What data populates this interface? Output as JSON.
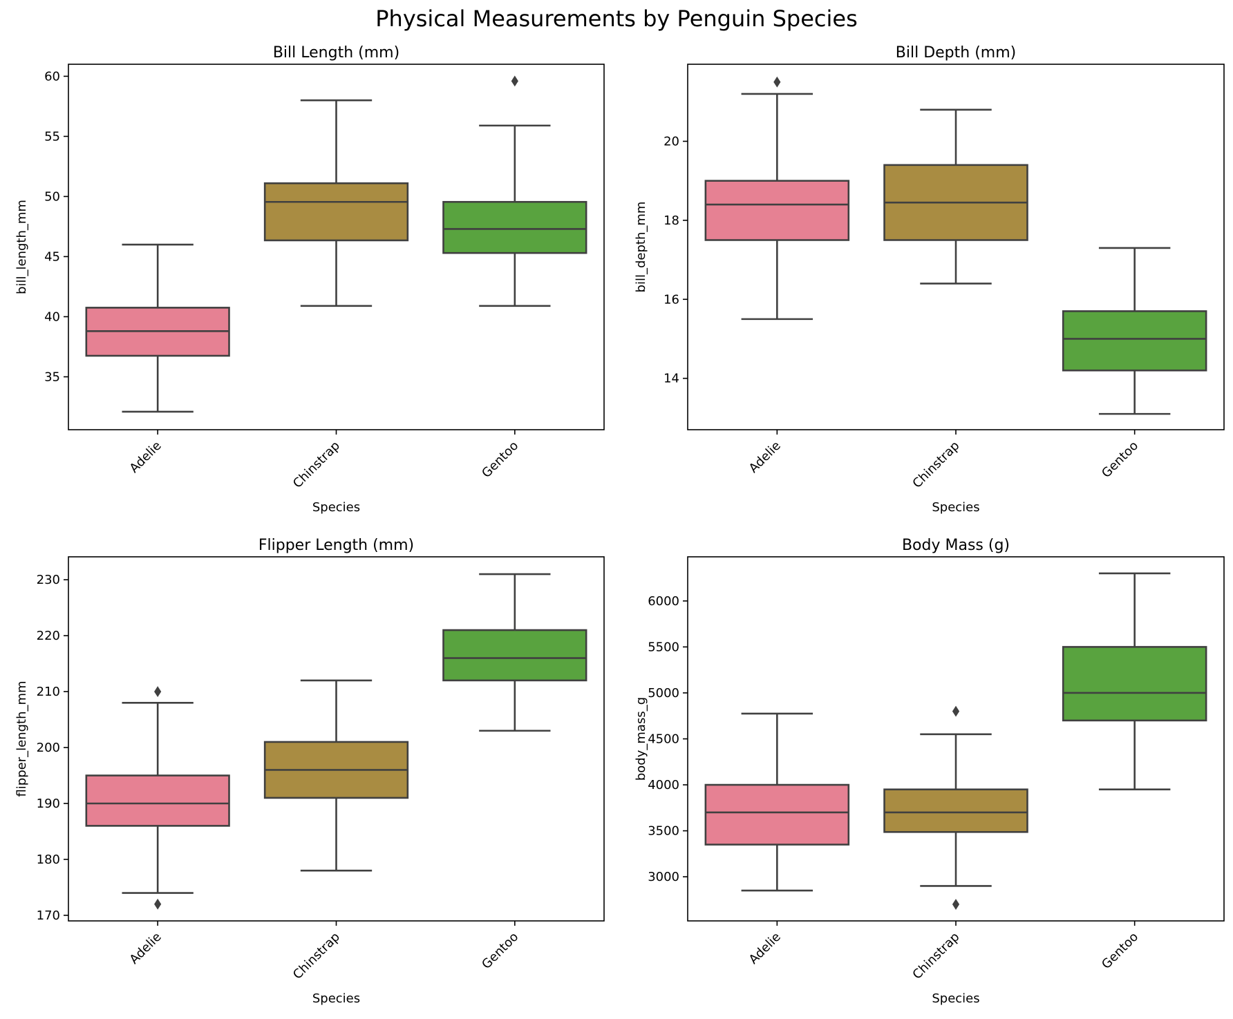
{
  "figure_title": "Physical Measurements by Penguin Species",
  "chart_data": [
    {
      "type": "box",
      "title": "Bill Length (mm)",
      "xlabel": "Species",
      "ylabel": "bill_length_mm",
      "categories": [
        "Adelie",
        "Chinstrap",
        "Gentoo"
      ],
      "ylim": [
        30.6,
        61.0
      ],
      "yticks": [
        35,
        40,
        45,
        50,
        55,
        60
      ],
      "boxes": [
        {
          "category": "Adelie",
          "whislo": 32.1,
          "q1": 36.75,
          "med": 38.8,
          "q3": 40.75,
          "whishi": 46.0,
          "fliers": []
        },
        {
          "category": "Chinstrap",
          "whislo": 40.9,
          "q1": 46.35,
          "med": 49.55,
          "q3": 51.1,
          "whishi": 58.0,
          "fliers": []
        },
        {
          "category": "Gentoo",
          "whislo": 40.9,
          "q1": 45.3,
          "med": 47.3,
          "q3": 49.55,
          "whishi": 55.9,
          "fliers": [
            59.6
          ]
        }
      ]
    },
    {
      "type": "box",
      "title": "Bill Depth (mm)",
      "xlabel": "Species",
      "ylabel": "bill_depth_mm",
      "categories": [
        "Adelie",
        "Chinstrap",
        "Gentoo"
      ],
      "ylim": [
        12.7,
        21.95
      ],
      "yticks": [
        14,
        16,
        18,
        20
      ],
      "boxes": [
        {
          "category": "Adelie",
          "whislo": 15.5,
          "q1": 17.5,
          "med": 18.4,
          "q3": 19.0,
          "whishi": 21.2,
          "fliers": [
            21.5
          ]
        },
        {
          "category": "Chinstrap",
          "whislo": 16.4,
          "q1": 17.5,
          "med": 18.45,
          "q3": 19.4,
          "whishi": 20.8,
          "fliers": []
        },
        {
          "category": "Gentoo",
          "whislo": 13.1,
          "q1": 14.2,
          "med": 15.0,
          "q3": 15.7,
          "whishi": 17.3,
          "fliers": []
        }
      ]
    },
    {
      "type": "box",
      "title": "Flipper Length (mm)",
      "xlabel": "Species",
      "ylabel": "flipper_length_mm",
      "categories": [
        "Adelie",
        "Chinstrap",
        "Gentoo"
      ],
      "ylim": [
        169.0,
        234.1
      ],
      "yticks": [
        170,
        180,
        190,
        200,
        210,
        220,
        230
      ],
      "boxes": [
        {
          "category": "Adelie",
          "whislo": 174,
          "q1": 186,
          "med": 190,
          "q3": 195,
          "whishi": 208,
          "fliers": [
            210,
            172
          ]
        },
        {
          "category": "Chinstrap",
          "whislo": 178,
          "q1": 191,
          "med": 196,
          "q3": 201,
          "whishi": 212,
          "fliers": []
        },
        {
          "category": "Gentoo",
          "whislo": 203,
          "q1": 212,
          "med": 216,
          "q3": 221,
          "whishi": 231,
          "fliers": []
        }
      ]
    },
    {
      "type": "box",
      "title": "Body Mass (g)",
      "xlabel": "Species",
      "ylabel": "body_mass_g",
      "categories": [
        "Adelie",
        "Chinstrap",
        "Gentoo"
      ],
      "ylim": [
        2520,
        6480
      ],
      "yticks": [
        3000,
        3500,
        4000,
        4500,
        5000,
        5500,
        6000
      ],
      "boxes": [
        {
          "category": "Adelie",
          "whislo": 2850,
          "q1": 3350,
          "med": 3700,
          "q3": 4000,
          "whishi": 4775,
          "fliers": []
        },
        {
          "category": "Chinstrap",
          "whislo": 2900,
          "q1": 3487,
          "med": 3700,
          "q3": 3950,
          "whishi": 4550,
          "fliers": [
            4800,
            2700
          ]
        },
        {
          "category": "Gentoo",
          "whislo": 3950,
          "q1": 4700,
          "med": 5000,
          "q3": 5500,
          "whishi": 6300,
          "fliers": []
        }
      ]
    }
  ],
  "colors": {
    "Adelie": "#e68193",
    "Chinstrap": "#a98c42",
    "Gentoo": "#59a33f",
    "line": "#404040",
    "axes": "#000000"
  }
}
